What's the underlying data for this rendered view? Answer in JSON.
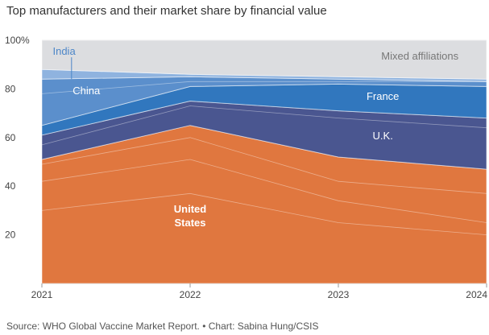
{
  "title": "Top manufacturers and their market share by financial value",
  "source": "Source: WHO Global Vaccine Market Report. • Chart: Sabina Hung/CSIS",
  "chart_data": {
    "type": "area",
    "stacked": true,
    "x": [
      "2021",
      "2022",
      "2023",
      "2024"
    ],
    "ylim": [
      0,
      100
    ],
    "yticks": [
      20,
      40,
      60,
      80,
      100
    ],
    "ytick_labels": [
      "20",
      "40",
      "60",
      "80",
      "100%"
    ],
    "series": [
      {
        "name": "United States",
        "label": "United\nStates",
        "values": [
          51,
          65,
          52,
          47
        ],
        "color": "#E0773F",
        "label_color": "#ffffff"
      },
      {
        "name": "U.K.",
        "label": "U.K.",
        "values": [
          10,
          10,
          19,
          21
        ],
        "color": "#4A5690",
        "label_color": "#ffffff"
      },
      {
        "name": "France",
        "label": "France",
        "values": [
          4,
          6,
          11,
          13
        ],
        "color": "#3177BE",
        "label_color": "#ffffff"
      },
      {
        "name": "China",
        "label": "China",
        "values": [
          19,
          4,
          2,
          2
        ],
        "color": "#5B8FCC",
        "label_color": "#ffffff"
      },
      {
        "name": "India",
        "label": "India",
        "values": [
          4,
          1,
          1,
          1
        ],
        "color": "#8FB3DF",
        "label_color": "#4C86C8"
      },
      {
        "name": "Mixed affiliations",
        "label": "Mixed affiliations",
        "values": [
          12,
          14,
          15,
          16
        ],
        "color": "#DCDDE0",
        "label_color": "#777777"
      }
    ],
    "internal_divider_values": {
      "United States": [
        [
          30,
          37,
          25,
          20
        ],
        [
          42,
          51,
          34,
          25
        ],
        [
          49,
          60,
          42,
          37
        ]
      ],
      "U.K.": [
        [
          57,
          73,
          68,
          64
        ]
      ],
      "China": [
        [
          78,
          83,
          83,
          83
        ]
      ]
    },
    "grid": true
  }
}
